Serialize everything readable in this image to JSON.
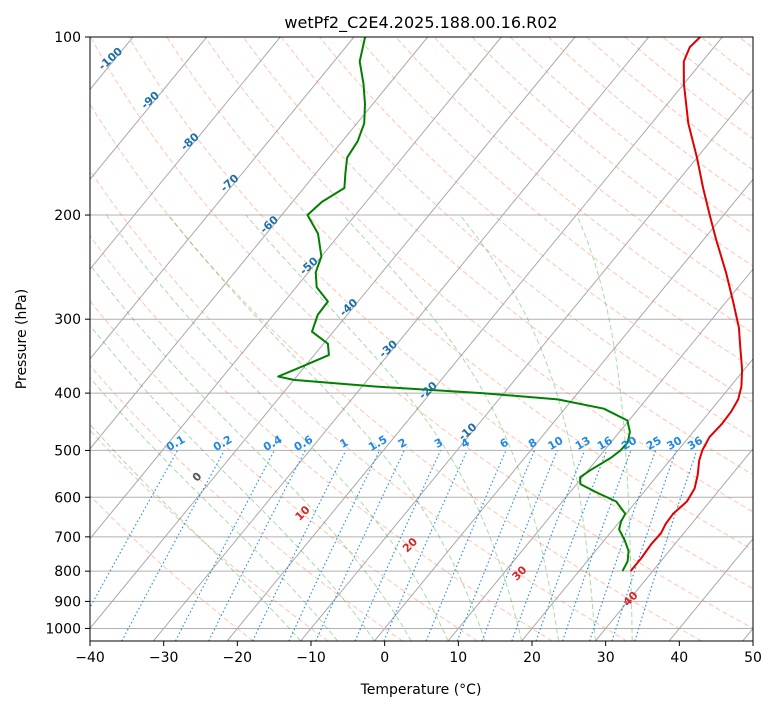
{
  "chart_data": {
    "type": "line",
    "subtype": "skew-t log-p diagram",
    "title": "wetPf2_C2E4.2025.188.00.16.R02",
    "xlabel": "Temperature (°C)",
    "ylabel": "Pressure (hPa)",
    "xlim": [
      -40,
      50
    ],
    "ylim": [
      1050,
      100
    ],
    "y_scale": "log",
    "x_ticks": [
      -40,
      -30,
      -20,
      -10,
      0,
      10,
      20,
      30,
      40,
      50
    ],
    "x_tick_labels": [
      "−40",
      "−30",
      "−20",
      "−10",
      "0",
      "10",
      "20",
      "30",
      "40",
      "50"
    ],
    "y_ticks": [
      100,
      200,
      300,
      400,
      500,
      600,
      700,
      800,
      900,
      1000
    ],
    "y_tick_labels": [
      "100",
      "200",
      "300",
      "400",
      "500",
      "600",
      "700",
      "800",
      "900",
      "1000"
    ],
    "grid": true,
    "colors": {
      "temperature": "#e00000",
      "dewpoint": "#008000",
      "isotherm_label": "#1f6fa8",
      "mixing_ratio": "#1e88e5",
      "dry_adiabat": "#ff7f50",
      "moist_adiabat": "#2ca02c",
      "theta_label": "#d62728"
    },
    "isotherm_labels": [
      "-100",
      "-90",
      "-80",
      "-70",
      "-60",
      "-50",
      "-40",
      "-30",
      "-20",
      "-10"
    ],
    "mixing_ratio_labels": [
      "0.1",
      "0.2",
      "0.4",
      "0.6",
      "1",
      "1.5",
      "2",
      "3",
      "4",
      "6",
      "8",
      "10",
      "13",
      "16",
      "20",
      "25",
      "30",
      "36"
    ],
    "theta_labels": [
      "0",
      "10",
      "20",
      "30",
      "40"
    ],
    "series": [
      {
        "name": "temperature",
        "points": [
          {
            "p": 800,
            "t": 27.0
          },
          {
            "p": 760,
            "t": 27.0
          },
          {
            "p": 720,
            "t": 26.8
          },
          {
            "p": 690,
            "t": 26.9
          },
          {
            "p": 665,
            "t": 26.5
          },
          {
            "p": 640,
            "t": 26.4
          },
          {
            "p": 610,
            "t": 26.9
          },
          {
            "p": 580,
            "t": 26.5
          },
          {
            "p": 550,
            "t": 25.4
          },
          {
            "p": 520,
            "t": 24.0
          },
          {
            "p": 500,
            "t": 23.3
          },
          {
            "p": 475,
            "t": 22.8
          },
          {
            "p": 450,
            "t": 23.0
          },
          {
            "p": 430,
            "t": 22.9
          },
          {
            "p": 410,
            "t": 22.5
          },
          {
            "p": 390,
            "t": 21.5
          },
          {
            "p": 365,
            "t": 19.7
          },
          {
            "p": 335,
            "t": 17.0
          },
          {
            "p": 310,
            "t": 14.6
          },
          {
            "p": 280,
            "t": 10.9
          },
          {
            "p": 250,
            "t": 6.7
          },
          {
            "p": 220,
            "t": 1.7
          },
          {
            "p": 200,
            "t": -1.9
          },
          {
            "p": 180,
            "t": -5.8
          },
          {
            "p": 160,
            "t": -10.0
          },
          {
            "p": 140,
            "t": -15.0
          },
          {
            "p": 120,
            "t": -20.0
          },
          {
            "p": 110,
            "t": -22.5
          },
          {
            "p": 104,
            "t": -23.3
          },
          {
            "p": 100,
            "t": -23.0
          }
        ]
      },
      {
        "name": "dewpoint",
        "points": [
          {
            "p": 800,
            "t": 25.9
          },
          {
            "p": 770,
            "t": 25.5
          },
          {
            "p": 740,
            "t": 24.5
          },
          {
            "p": 710,
            "t": 22.8
          },
          {
            "p": 680,
            "t": 20.8
          },
          {
            "p": 660,
            "t": 20.2
          },
          {
            "p": 640,
            "t": 19.9
          },
          {
            "p": 610,
            "t": 17.3
          },
          {
            "p": 590,
            "t": 13.8
          },
          {
            "p": 570,
            "t": 10.5
          },
          {
            "p": 555,
            "t": 9.7
          },
          {
            "p": 540,
            "t": 10.3
          },
          {
            "p": 515,
            "t": 11.7
          },
          {
            "p": 500,
            "t": 12.2
          },
          {
            "p": 485,
            "t": 12.3
          },
          {
            "p": 465,
            "t": 11.4
          },
          {
            "p": 445,
            "t": 9.8
          },
          {
            "p": 425,
            "t": 5.3
          },
          {
            "p": 410,
            "t": -2.0
          },
          {
            "p": 400,
            "t": -13.0
          },
          {
            "p": 390,
            "t": -28.0
          },
          {
            "p": 380,
            "t": -40.0
          },
          {
            "p": 375,
            "t": -42.5
          },
          {
            "p": 365,
            "t": -41.0
          },
          {
            "p": 345,
            "t": -38.0
          },
          {
            "p": 330,
            "t": -39.4
          },
          {
            "p": 315,
            "t": -42.9
          },
          {
            "p": 295,
            "t": -44.0
          },
          {
            "p": 280,
            "t": -44.1
          },
          {
            "p": 265,
            "t": -47.2
          },
          {
            "p": 250,
            "t": -49.0
          },
          {
            "p": 235,
            "t": -50.0
          },
          {
            "p": 215,
            "t": -53.0
          },
          {
            "p": 200,
            "t": -56.5
          },
          {
            "p": 190,
            "t": -56.0
          },
          {
            "p": 180,
            "t": -54.5
          },
          {
            "p": 170,
            "t": -56.0
          },
          {
            "p": 160,
            "t": -57.5
          },
          {
            "p": 150,
            "t": -57.9
          },
          {
            "p": 140,
            "t": -59.0
          },
          {
            "p": 130,
            "t": -61.0
          },
          {
            "p": 120,
            "t": -63.5
          },
          {
            "p": 110,
            "t": -66.5
          },
          {
            "p": 100,
            "t": -68.5
          }
        ]
      }
    ]
  }
}
